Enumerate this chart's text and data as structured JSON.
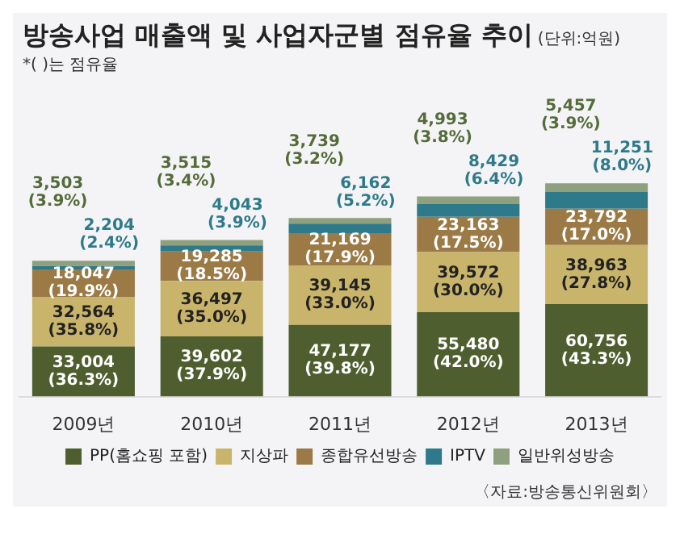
{
  "chart_data": {
    "type": "bar",
    "title": "방송사업 매출액 및 사업자군별 점유율 추이",
    "subtitle": "(단위:억원)",
    "annotations": [
      "*( )는 점유율",
      "〈자료:방송통신위원회〉"
    ],
    "categories": [
      "2009년",
      "2010년",
      "2011년",
      "2012년",
      "2013년"
    ],
    "stacked": true,
    "legend": "bottom",
    "grid": false,
    "series": [
      {
        "name": "PP(홈쇼핑 포함)",
        "color": "#4e5e2e",
        "values": [
          33004,
          39602,
          47177,
          55480,
          60756
        ],
        "value_labels": [
          "33,004\n(36.3%)",
          "39,602\n(37.9%)",
          "47,177\n(39.8%)",
          "55,480\n(42.0%)",
          "60,756\n(43.3%)"
        ]
      },
      {
        "name": "지상파",
        "color": "#c8b46a",
        "values": [
          32564,
          36497,
          39145,
          39572,
          38963
        ],
        "value_labels": [
          "32,564\n(35.8%)",
          "36,497\n(35.0%)",
          "39,145\n(33.0%)",
          "39,572\n(30.0%)",
          "38,963\n(27.8%)"
        ]
      },
      {
        "name": "종합유선방송",
        "color": "#9b7a45",
        "values": [
          18047,
          19285,
          21169,
          23163,
          23792
        ],
        "value_labels": [
          "18,047\n(19.9%)",
          "19,285\n(18.5%)",
          "21,169\n(17.9%)",
          "23,163\n(17.5%)",
          "23,792\n(17.0%)"
        ]
      },
      {
        "name": "IPTV",
        "color": "#2e7a8a",
        "values": [
          2204,
          4043,
          6162,
          8429,
          11251
        ],
        "value_labels": [
          "2,204\n(2.4%)",
          "4,043\n(3.9%)",
          "6,162\n(5.2%)",
          "8,429\n(6.4%)",
          "11,251\n(8.0%)"
        ]
      },
      {
        "name": "일반위성방송",
        "color": "#8fa07e",
        "values": [
          3503,
          3515,
          3739,
          4993,
          5457
        ],
        "value_labels": [
          "3,503\n(3.9%)",
          "3,515\n(3.4%)",
          "3,739\n(3.2%)",
          "4,993\n(3.8%)",
          "5,457\n(3.9%)"
        ]
      }
    ]
  }
}
